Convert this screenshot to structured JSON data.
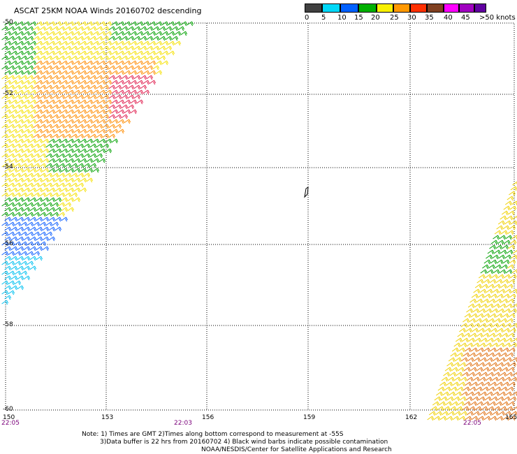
{
  "header": {
    "title": "ASCAT 25KM NOAA Winds 20160702 descending"
  },
  "color_scale": {
    "labels": [
      "0",
      "5",
      "10",
      "15",
      "20",
      "25",
      "30",
      "35",
      "40",
      "45",
      ">50 knots"
    ],
    "colors": [
      "#404040",
      "#00d8f8",
      "#0060ff",
      "#0000b0",
      "#00b000",
      "#f8f000",
      "#ff9800",
      "#ff3000",
      "#c01060",
      "#804020",
      "#ff00ff",
      "#a000c0",
      "#6000a0"
    ]
  },
  "axes": {
    "lat_labels": [
      "-50",
      "-52",
      "-54",
      "-56",
      "-58",
      "-60"
    ],
    "lon_labels": [
      "150",
      "153",
      "156",
      "159",
      "162",
      "165"
    ],
    "time_labels": [
      "22:05",
      "22:03",
      "22:05"
    ]
  },
  "notes": {
    "line1": "Note: 1) Times are GMT 2)Times along bottom correspond to measurement at -55S",
    "line2": "3)Data buffer is 22 hrs from 20160702 4) Black wind barbs indicate possible contamination",
    "line3": "NOAA/NESDIS/Center for Satellite Applications and Research"
  }
}
